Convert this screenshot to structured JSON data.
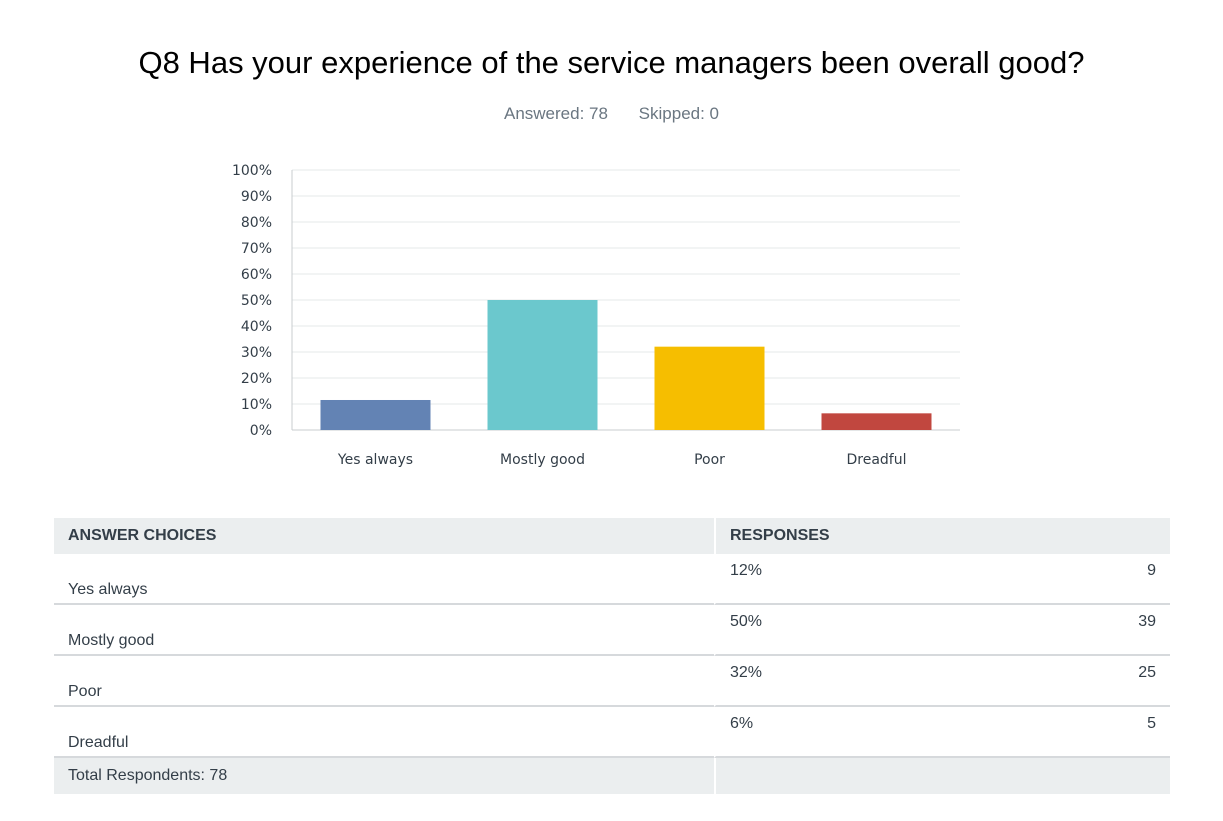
{
  "question": {
    "title": "Q8 Has your experience of the service managers been overall good?",
    "answered": "Answered: 78",
    "skipped": "Skipped: 0"
  },
  "chart_data": {
    "type": "bar",
    "categories": [
      "Yes always",
      "Mostly good",
      "Poor",
      "Dreadful"
    ],
    "values": [
      11.54,
      50.0,
      32.05,
      6.41
    ],
    "colors": [
      "#6383b4",
      "#6bc8cd",
      "#f6be00",
      "#c1473f"
    ],
    "yticks": [
      "0%",
      "10%",
      "20%",
      "30%",
      "40%",
      "50%",
      "60%",
      "70%",
      "80%",
      "90%",
      "100%"
    ],
    "ylim": [
      0,
      100
    ],
    "grid": true
  },
  "table": {
    "headers": {
      "choices": "ANSWER CHOICES",
      "responses": "RESPONSES"
    },
    "rows": [
      {
        "choice": "Yes always",
        "percent": "12%",
        "count": "9"
      },
      {
        "choice": "Mostly good",
        "percent": "50%",
        "count": "39"
      },
      {
        "choice": "Poor",
        "percent": "32%",
        "count": "25"
      },
      {
        "choice": "Dreadful",
        "percent": "6%",
        "count": "5"
      }
    ],
    "total": "Total Respondents: 78"
  }
}
